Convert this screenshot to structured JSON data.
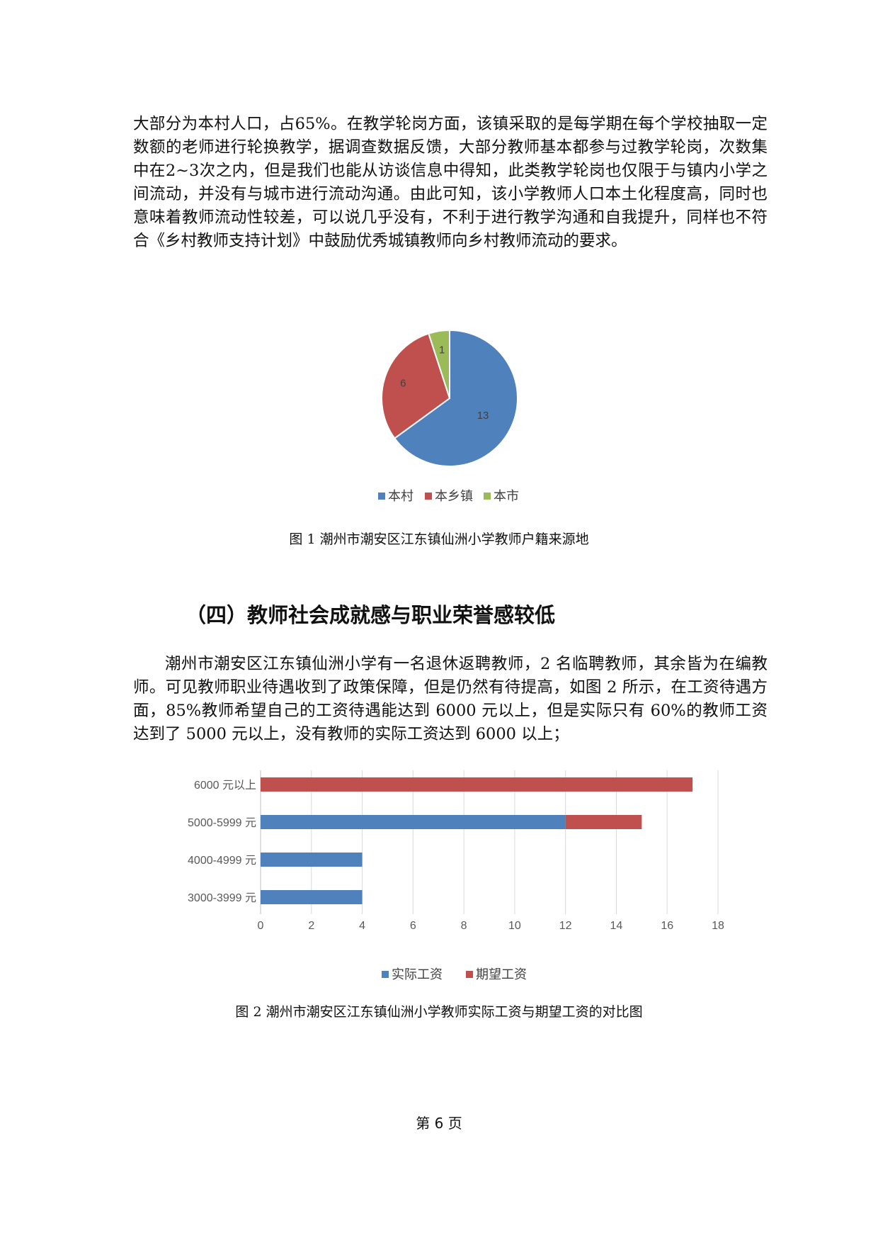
{
  "paragraph_1": "大部分为本村人口，占65%。在教学轮岗方面，该镇采取的是每学期在每个学校抽取一定数额的老师进行轮换教学，据调查数据反馈，大部分教师基本都参与过教学轮岗，次数集中在2~3次之内，但是我们也能从访谈信息中得知，此类教学轮岗也仅限于与镇内小学之间流动，并没有与城市进行流动沟通。由此可知，该小学教师人口本土化程度高，同时也意味着教师流动性较差，可以说几乎没有，不利于进行教学沟通和自我提升，同样也不符合《乡村教师支持计划》中鼓励优秀城镇教师向乡村教师流动的要求。",
  "figure_1_caption": "图 1  潮州市潮安区江东镇仙洲小学教师户籍来源地",
  "section_heading": "（四）教师社会成就感与职业荣誉感较低",
  "paragraph_2": "潮州市潮安区江东镇仙洲小学有一名退休返聘教师，2 名临聘教师，其余皆为在编教师。可见教师职业待遇收到了政策保障，但是仍然有待提高，如图 2 所示，在工资待遇方面，85%教师希望自己的工资待遇能达到 6000 元以上，但是实际只有 60%的教师工资达到了 5000 元以上，没有教师的实际工资达到 6000 以上；",
  "figure_2_caption": "图 2    潮州市潮安区江东镇仙洲小学教师实际工资与期望工资的对比图",
  "page_number": "第 6 页",
  "chart_data": [
    {
      "type": "pie",
      "title": "",
      "categories": [
        "本村",
        "本乡镇",
        "本市"
      ],
      "values": [
        13,
        6,
        1
      ],
      "data_labels": [
        "13",
        "6",
        "1"
      ],
      "colors": [
        "#4f81bd",
        "#c0504d",
        "#9bbb59"
      ],
      "legend_position": "bottom"
    },
    {
      "type": "bar",
      "orientation": "horizontal",
      "stacked": true,
      "title": "",
      "categories": [
        "6000 元以上",
        "5000-5999 元",
        "4000-4999 元",
        "3000-3999 元"
      ],
      "series": [
        {
          "name": "实际工资",
          "values": [
            0,
            12,
            4,
            4
          ],
          "color": "#4f81bd"
        },
        {
          "name": "期望工资",
          "values": [
            17,
            3,
            0,
            0
          ],
          "color": "#c0504d"
        }
      ],
      "xlim": [
        0,
        18
      ],
      "x_ticks": [
        "0",
        "2",
        "4",
        "6",
        "8",
        "10",
        "12",
        "14",
        "16",
        "18"
      ],
      "grid": "vertical",
      "legend_position": "bottom"
    }
  ]
}
